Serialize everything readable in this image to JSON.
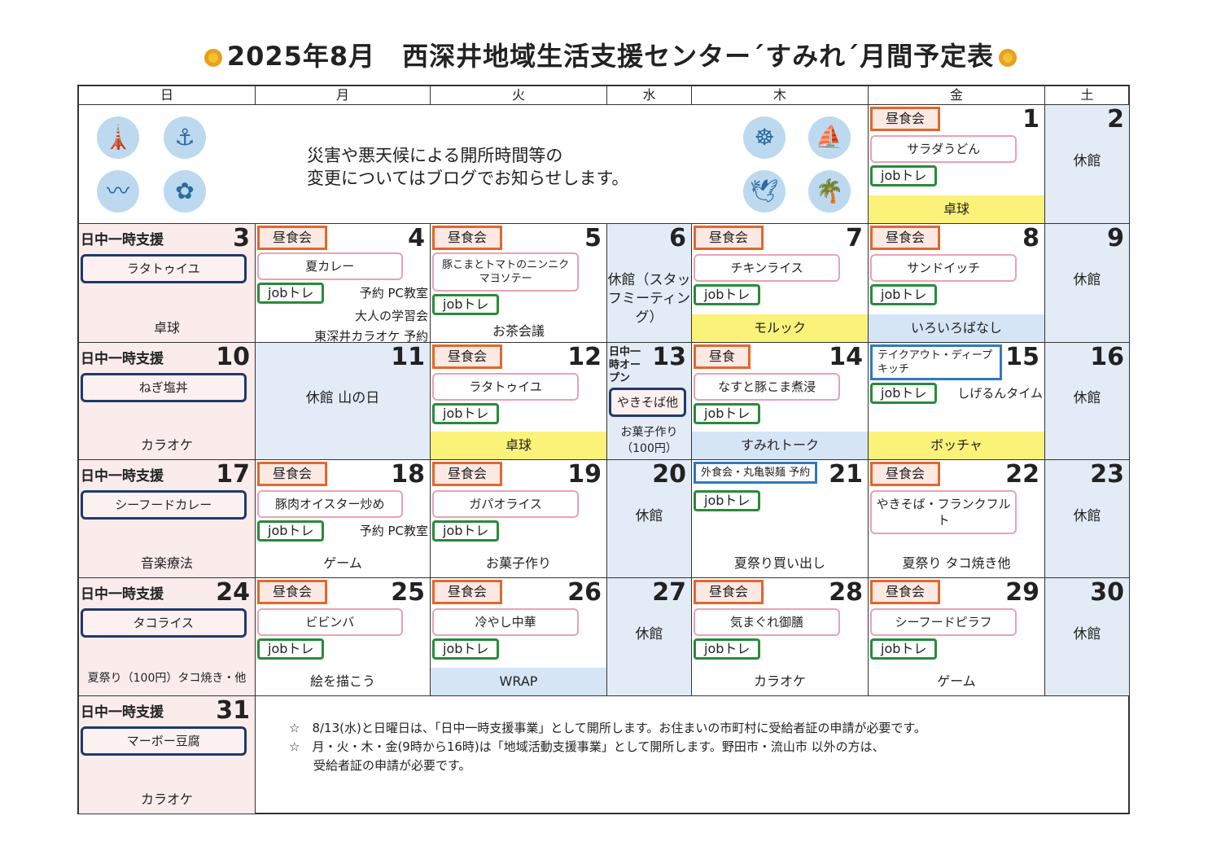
{
  "title": "2025年8月　西深井地域生活支援センター´すみれ´月間予定表",
  "weekdays": [
    "日",
    "月",
    "火",
    "水",
    "木",
    "金",
    "土"
  ],
  "notice": [
    "災害や悪天候による開所時間等の",
    "変更についてはブログでお知らせします。"
  ],
  "icons": [
    "lighthouse-icon",
    "anchor-icon",
    "bird-icon",
    "sunflower-icon",
    "ship-wheel-icon",
    "sailboat-icon",
    "seagull-icon",
    "palm-tree-icon"
  ],
  "colors": {
    "lunch_border": "#e2672b",
    "menu_border": "#e8a3b3",
    "job_border": "#2a8a3c",
    "support_border": "#1f3a6b",
    "sunday_bg": "#fbecec",
    "closed_bg": "#e3ebf7",
    "yellow_band": "#fbf27a",
    "blue_band": "#d5e5f6"
  },
  "notes": [
    "☆　8/13(水)と日曜日は、「日中一時支援事業」として開所します。お住まいの市町村に受給者証の申請が必要です。",
    "☆　月・火・木・金(9時から16時)は「地域活動支援事業」として開所します。野田市・流山市 以外の方は、",
    "　　受給者証の申請が必要です。"
  ],
  "cells": [
    {
      "r": 0,
      "c": 5,
      "day": "1",
      "badge": "昼食会",
      "menu": "サラダうどん",
      "job": "jobトレ",
      "act": "卓球",
      "band": "yellow"
    },
    {
      "r": 0,
      "c": 6,
      "day": "2",
      "closed": "休館"
    },
    {
      "r": 1,
      "c": 0,
      "day": "3",
      "support": "日中一時支援",
      "menu": "ラタトゥイユ",
      "act": "卓球"
    },
    {
      "r": 1,
      "c": 1,
      "day": "4",
      "badge": "昼食会",
      "menu": "夏カレー",
      "job": "jobトレ",
      "extra": [
        "予約 PC教室",
        "大人の学習会",
        "東深井カラオケ 予約"
      ]
    },
    {
      "r": 1,
      "c": 2,
      "day": "5",
      "badge": "昼食会",
      "menu": "豚こまとトマトのニンニクマヨソテー",
      "job": "jobトレ",
      "act": "お茶会議"
    },
    {
      "r": 1,
      "c": 3,
      "day": "6",
      "closed": "休館（スタッフミーティング）"
    },
    {
      "r": 1,
      "c": 4,
      "day": "7",
      "badge": "昼食会",
      "menu": "チキンライス",
      "job": "jobトレ",
      "act": "モルック",
      "band": "yellow"
    },
    {
      "r": 1,
      "c": 5,
      "day": "8",
      "badge": "昼食会",
      "menu": "サンドイッチ",
      "job": "jobトレ",
      "act": "いろいろばなし",
      "band": "lblue"
    },
    {
      "r": 1,
      "c": 6,
      "day": "9",
      "closed": "休館"
    },
    {
      "r": 2,
      "c": 0,
      "day": "10",
      "support": "日中一時支援",
      "menu": "ねぎ塩丼",
      "act": "カラオケ"
    },
    {
      "r": 2,
      "c": 1,
      "day": "11",
      "closed": "休館 山の日",
      "wed": true
    },
    {
      "r": 2,
      "c": 2,
      "day": "12",
      "badge": "昼食会",
      "menu": "ラタトゥイユ",
      "job": "jobトレ",
      "act": "卓球",
      "band": "yellow"
    },
    {
      "r": 2,
      "c": 3,
      "day": "13",
      "support": "日中一時オープン",
      "menu": "やきそば他",
      "act": "お菓子作り（100円）",
      "sunlike": true
    },
    {
      "r": 2,
      "c": 4,
      "day": "14",
      "badge": "昼食",
      "menu": "なすと豚こま煮浸",
      "job": "jobトレ",
      "act": "すみれトーク",
      "band": "lblue"
    },
    {
      "r": 2,
      "c": 5,
      "day": "15",
      "badge": "テイクアウト・ディープキッチ",
      "job": "jobトレ",
      "extra": [
        "しげるんタイム"
      ],
      "act": "ボッチャ",
      "band": "yellow"
    },
    {
      "r": 2,
      "c": 6,
      "day": "16",
      "closed": "休館"
    },
    {
      "r": 3,
      "c": 0,
      "day": "17",
      "support": "日中一時支援",
      "menu": "シーフードカレー",
      "act": "音楽療法"
    },
    {
      "r": 3,
      "c": 1,
      "day": "18",
      "badge": "昼食会",
      "menu": "豚肉オイスター炒め",
      "job": "jobトレ",
      "extra": [
        "予約 PC教室"
      ],
      "act": "ゲーム"
    },
    {
      "r": 3,
      "c": 2,
      "day": "19",
      "badge": "昼食会",
      "menu": "ガパオライス",
      "job": "jobトレ",
      "act": "お菓子作り"
    },
    {
      "r": 3,
      "c": 3,
      "day": "20",
      "closed": "休館"
    },
    {
      "r": 3,
      "c": 4,
      "day": "21",
      "badge": "外食会・丸亀製麺 予約",
      "job": "jobトレ",
      "act": "夏祭り買い出し"
    },
    {
      "r": 3,
      "c": 5,
      "day": "22",
      "badge": "昼食会",
      "menu": "やきそば・フランクフルト",
      "act": "夏祭り タコ焼き他"
    },
    {
      "r": 3,
      "c": 6,
      "day": "23",
      "closed": "休館"
    },
    {
      "r": 4,
      "c": 0,
      "day": "24",
      "support": "日中一時支援",
      "menu": "タコライス",
      "act": "夏祭り（100円）タコ焼き・他"
    },
    {
      "r": 4,
      "c": 1,
      "day": "25",
      "badge": "昼食会",
      "menu": "ビビンバ",
      "job": "jobトレ",
      "act": "絵を描こう"
    },
    {
      "r": 4,
      "c": 2,
      "day": "26",
      "badge": "昼食会",
      "menu": "冷やし中華",
      "job": "jobトレ",
      "act": "WRAP",
      "band": "lblue"
    },
    {
      "r": 4,
      "c": 3,
      "day": "27",
      "closed": "休館"
    },
    {
      "r": 4,
      "c": 4,
      "day": "28",
      "badge": "昼食会",
      "menu": "気まぐれ御膳",
      "job": "jobトレ",
      "act": "カラオケ"
    },
    {
      "r": 4,
      "c": 5,
      "day": "29",
      "badge": "昼食会",
      "menu": "シーフードピラフ",
      "job": "jobトレ",
      "act": "ゲーム"
    },
    {
      "r": 4,
      "c": 6,
      "day": "30",
      "closed": "休館"
    },
    {
      "r": 5,
      "c": 0,
      "day": "31",
      "support": "日中一時支援",
      "menu": "マーボー豆腐",
      "act": "カラオケ"
    }
  ]
}
